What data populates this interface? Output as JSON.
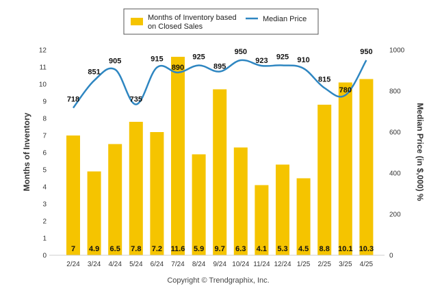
{
  "chart_data": {
    "type": "bar+line",
    "categories": [
      "2/24",
      "3/24",
      "4/24",
      "5/24",
      "6/24",
      "7/24",
      "8/24",
      "9/24",
      "10/24",
      "11/24",
      "12/24",
      "1/25",
      "2/25",
      "3/25",
      "4/25"
    ],
    "series": [
      {
        "name": "Months of Inventory based on Closed Sales",
        "type": "bar",
        "axis": "left",
        "values": [
          7,
          4.9,
          6.5,
          7.8,
          7.2,
          11.6,
          5.9,
          9.7,
          6.3,
          4.1,
          5.3,
          4.5,
          8.8,
          10.1,
          10.3
        ]
      },
      {
        "name": "Median Price",
        "type": "line",
        "axis": "right",
        "values": [
          718,
          851,
          905,
          735,
          915,
          890,
          925,
          895,
          950,
          923,
          925,
          910,
          815,
          780,
          950
        ]
      }
    ],
    "bar_labels": [
      "7",
      "4.9",
      "6.5",
      "7.8",
      "7.2",
      "11.6",
      "5.9",
      "9.7",
      "6.3",
      "4.1",
      "5.3",
      "4.5",
      "8.8",
      "10.1",
      "10.3"
    ],
    "price_labels": [
      "718",
      "851",
      "905",
      "735",
      "915",
      "890",
      "925",
      "895",
      "950",
      "923",
      "925",
      "910",
      "815",
      "780",
      "950"
    ],
    "y_left": {
      "label": "Months of Inventory",
      "min": 0,
      "max": 12,
      "ticks": [
        "0",
        "1",
        "2",
        "3",
        "4",
        "5",
        "6",
        "7",
        "8",
        "9",
        "10",
        "11",
        "12"
      ]
    },
    "y_right": {
      "label": "Median Price (in $,000) %",
      "min": 0,
      "max": 1000,
      "ticks": [
        "0",
        "200",
        "400",
        "600",
        "800",
        "1000"
      ]
    },
    "legend": {
      "position": "top-center",
      "bar_label_line1": "Months of Inventory based",
      "bar_label_line2": "on Closed Sales",
      "line_label": "Median Price"
    },
    "colors": {
      "bar": "#F5C400",
      "line": "#2E86C1"
    },
    "grid": false
  },
  "footer": {
    "copyright": "Copyright © Trendgraphix, Inc."
  }
}
